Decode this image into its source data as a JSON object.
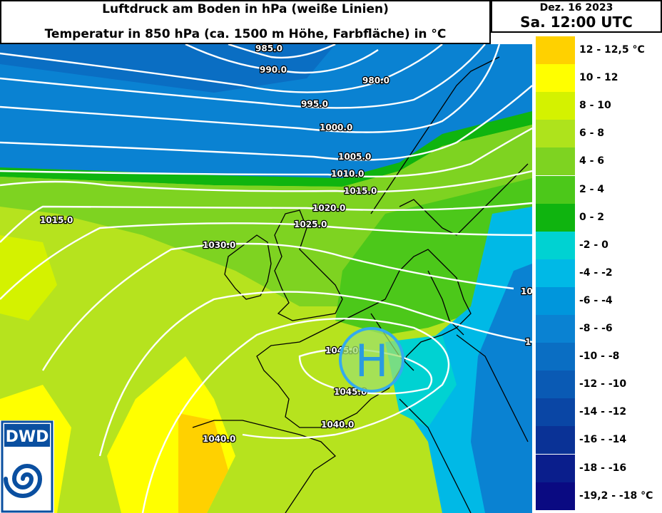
{
  "header": {
    "title_line1": "Luftdruck am Boden in hPa (weiße Linien)",
    "title_line2": "Temperatur in 850 hPa (ca. 1500 m Höhe, Farbfläche) in °C",
    "date": "Dez. 16 2023",
    "time": "Sa. 12:00 UTC"
  },
  "legend": {
    "classes": [
      {
        "label": "12 - 12,5 °C",
        "color": "#ffd100"
      },
      {
        "label": "10 - 12",
        "color": "#ffff00"
      },
      {
        "label": "8 - 10",
        "color": "#d4f200"
      },
      {
        "label": "6 - 8",
        "color": "#aee31c"
      },
      {
        "label": "4 - 6",
        "color": "#7ed321"
      },
      {
        "label": "2 - 4",
        "color": "#4cc81a"
      },
      {
        "label": "0 - 2",
        "color": "#0fb40f"
      },
      {
        "label": "-2 - 0",
        "color": "#00d2d2"
      },
      {
        "label": "-4 - -2",
        "color": "#00b9e6"
      },
      {
        "label": "-6 - -4",
        "color": "#0096dc"
      },
      {
        "label": "-8 - -6",
        "color": "#0a82d2"
      },
      {
        "label": "-10 - -8",
        "color": "#0a6ec3"
      },
      {
        "label": "-12 - -10",
        "color": "#0a5ab4"
      },
      {
        "label": "-14 - -12",
        "color": "#0a46a5"
      },
      {
        "label": "-16 - -14",
        "color": "#0a3296"
      },
      {
        "label": "-18 - -16",
        "color": "#0a1e8c"
      },
      {
        "label": "-19,2 - -18 °C",
        "color": "#0a0a82"
      }
    ]
  },
  "isobar_labels": [
    {
      "text": "985.0"
    },
    {
      "text": "990.0"
    },
    {
      "text": "980.0"
    },
    {
      "text": "995.0"
    },
    {
      "text": "1000.0"
    },
    {
      "text": "1005.0"
    },
    {
      "text": "1010.0"
    },
    {
      "text": "1015.0"
    },
    {
      "text": "1015.0"
    },
    {
      "text": "1020.0"
    },
    {
      "text": "1025.0"
    },
    {
      "text": "1030.0"
    },
    {
      "text": "1045.0"
    },
    {
      "text": "1045.0"
    },
    {
      "text": "1040.0"
    },
    {
      "text": "1040.0"
    },
    {
      "text": "10"
    },
    {
      "text": "1"
    }
  ],
  "pressure_center": {
    "label": "H"
  },
  "logo": {
    "text": "DWD"
  }
}
